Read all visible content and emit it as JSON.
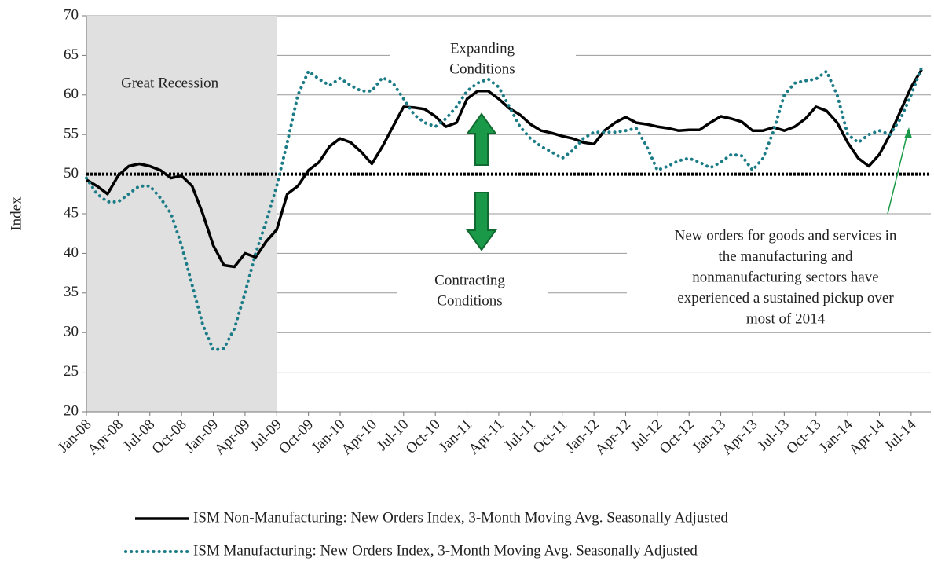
{
  "chart_data": {
    "type": "line",
    "y_label": "Index",
    "categories": [
      "Jan-08",
      null,
      null,
      "Apr-08",
      null,
      null,
      "Jul-08",
      null,
      null,
      "Oct-08",
      null,
      null,
      "Jan-09",
      null,
      null,
      "Apr-09",
      null,
      null,
      "Jul-09",
      null,
      null,
      "Oct-09",
      null,
      null,
      "Jan-10",
      null,
      null,
      "Apr-10",
      null,
      null,
      "Jul-10",
      null,
      null,
      "Oct-10",
      null,
      null,
      "Jan-11",
      null,
      null,
      "Apr-11",
      null,
      null,
      "Jul-11",
      null,
      null,
      "Oct-11",
      null,
      null,
      "Jan-12",
      null,
      null,
      "Apr-12",
      null,
      null,
      "Jul-12",
      null,
      null,
      "Oct-12",
      null,
      null,
      "Jan-13",
      null,
      null,
      "Apr-13",
      null,
      null,
      "Jul-13",
      null,
      null,
      "Oct-13",
      null,
      null,
      "Jan-14",
      null,
      null,
      "Apr-14",
      null,
      null,
      "Jul-14",
      null
    ],
    "series": [
      {
        "name": "ISM Non-Manufacturing: New Orders Index, 3-Month Moving Avg. Seasonally Adjusted",
        "color": "#000000",
        "style": "solid",
        "values": [
          49.3,
          48.5,
          47.5,
          49.8,
          51,
          51.3,
          51,
          50.5,
          49.5,
          49.8,
          48.5,
          45,
          41,
          38.5,
          38.3,
          40,
          39.5,
          41.5,
          43,
          47.5,
          48.5,
          50.5,
          51.5,
          53.5,
          54.5,
          54,
          52.8,
          51.3,
          53.5,
          56,
          58.5,
          58.4,
          58.2,
          57.3,
          56,
          56.5,
          59.5,
          60.5,
          60.5,
          59.5,
          58.3,
          57.5,
          56.3,
          55.5,
          55.2,
          54.8,
          54.5,
          54,
          53.8,
          55.5,
          56.5,
          57.2,
          56.5,
          56.3,
          56,
          55.8,
          55.5,
          55.6,
          55.6,
          56.5,
          57.3,
          57,
          56.6,
          55.5,
          55.5,
          55.9,
          55.5,
          56,
          57,
          58.5,
          58,
          56.5,
          54,
          52,
          51,
          52.5,
          55,
          58,
          61,
          63.2
        ]
      },
      {
        "name": "ISM Manufacturing: New Orders Index, 3-Month Moving Avg. Seasonally Adjusted",
        "color": "#1b7b86",
        "style": "dotted",
        "values": [
          49.5,
          47.5,
          46.5,
          46.5,
          47.5,
          48.5,
          48.5,
          47,
          45,
          41,
          36,
          31,
          27.8,
          28,
          30.5,
          35,
          40,
          44,
          48.5,
          54,
          60,
          63,
          62,
          61.2,
          62.1,
          61.2,
          60.5,
          60.5,
          62.2,
          61.5,
          59.5,
          57.5,
          56.5,
          56,
          57,
          58.5,
          60.5,
          61.5,
          62,
          61,
          58.5,
          56,
          54.5,
          53.5,
          52.8,
          52,
          53,
          54.5,
          55.3,
          55.3,
          55.3,
          55.5,
          55.8,
          53.5,
          50.5,
          51,
          51.7,
          52,
          51.5,
          50.8,
          51.5,
          52.5,
          52.3,
          50.5,
          52,
          55.5,
          60,
          61.5,
          61.8,
          62,
          63,
          60,
          55,
          54,
          55,
          55.5,
          55,
          57,
          60,
          63.5
        ]
      }
    ],
    "ylim": [
      20,
      70
    ],
    "yticks": [
      20,
      25,
      30,
      35,
      40,
      45,
      50,
      55,
      60,
      65,
      70
    ],
    "grid": true,
    "reference_line": 50,
    "shaded_region": {
      "label": "Great Recession",
      "start": "Jan-08",
      "end": "Jul-09"
    },
    "annotations": {
      "expanding": [
        "Expanding",
        "Conditions"
      ],
      "contracting": [
        "Contracting",
        "Conditions"
      ],
      "note": [
        "New orders for goods and services in",
        "the manufacturing and",
        "nonmanufacturing sectors have",
        "experienced a sustained pickup over",
        "most of 2014"
      ]
    }
  }
}
